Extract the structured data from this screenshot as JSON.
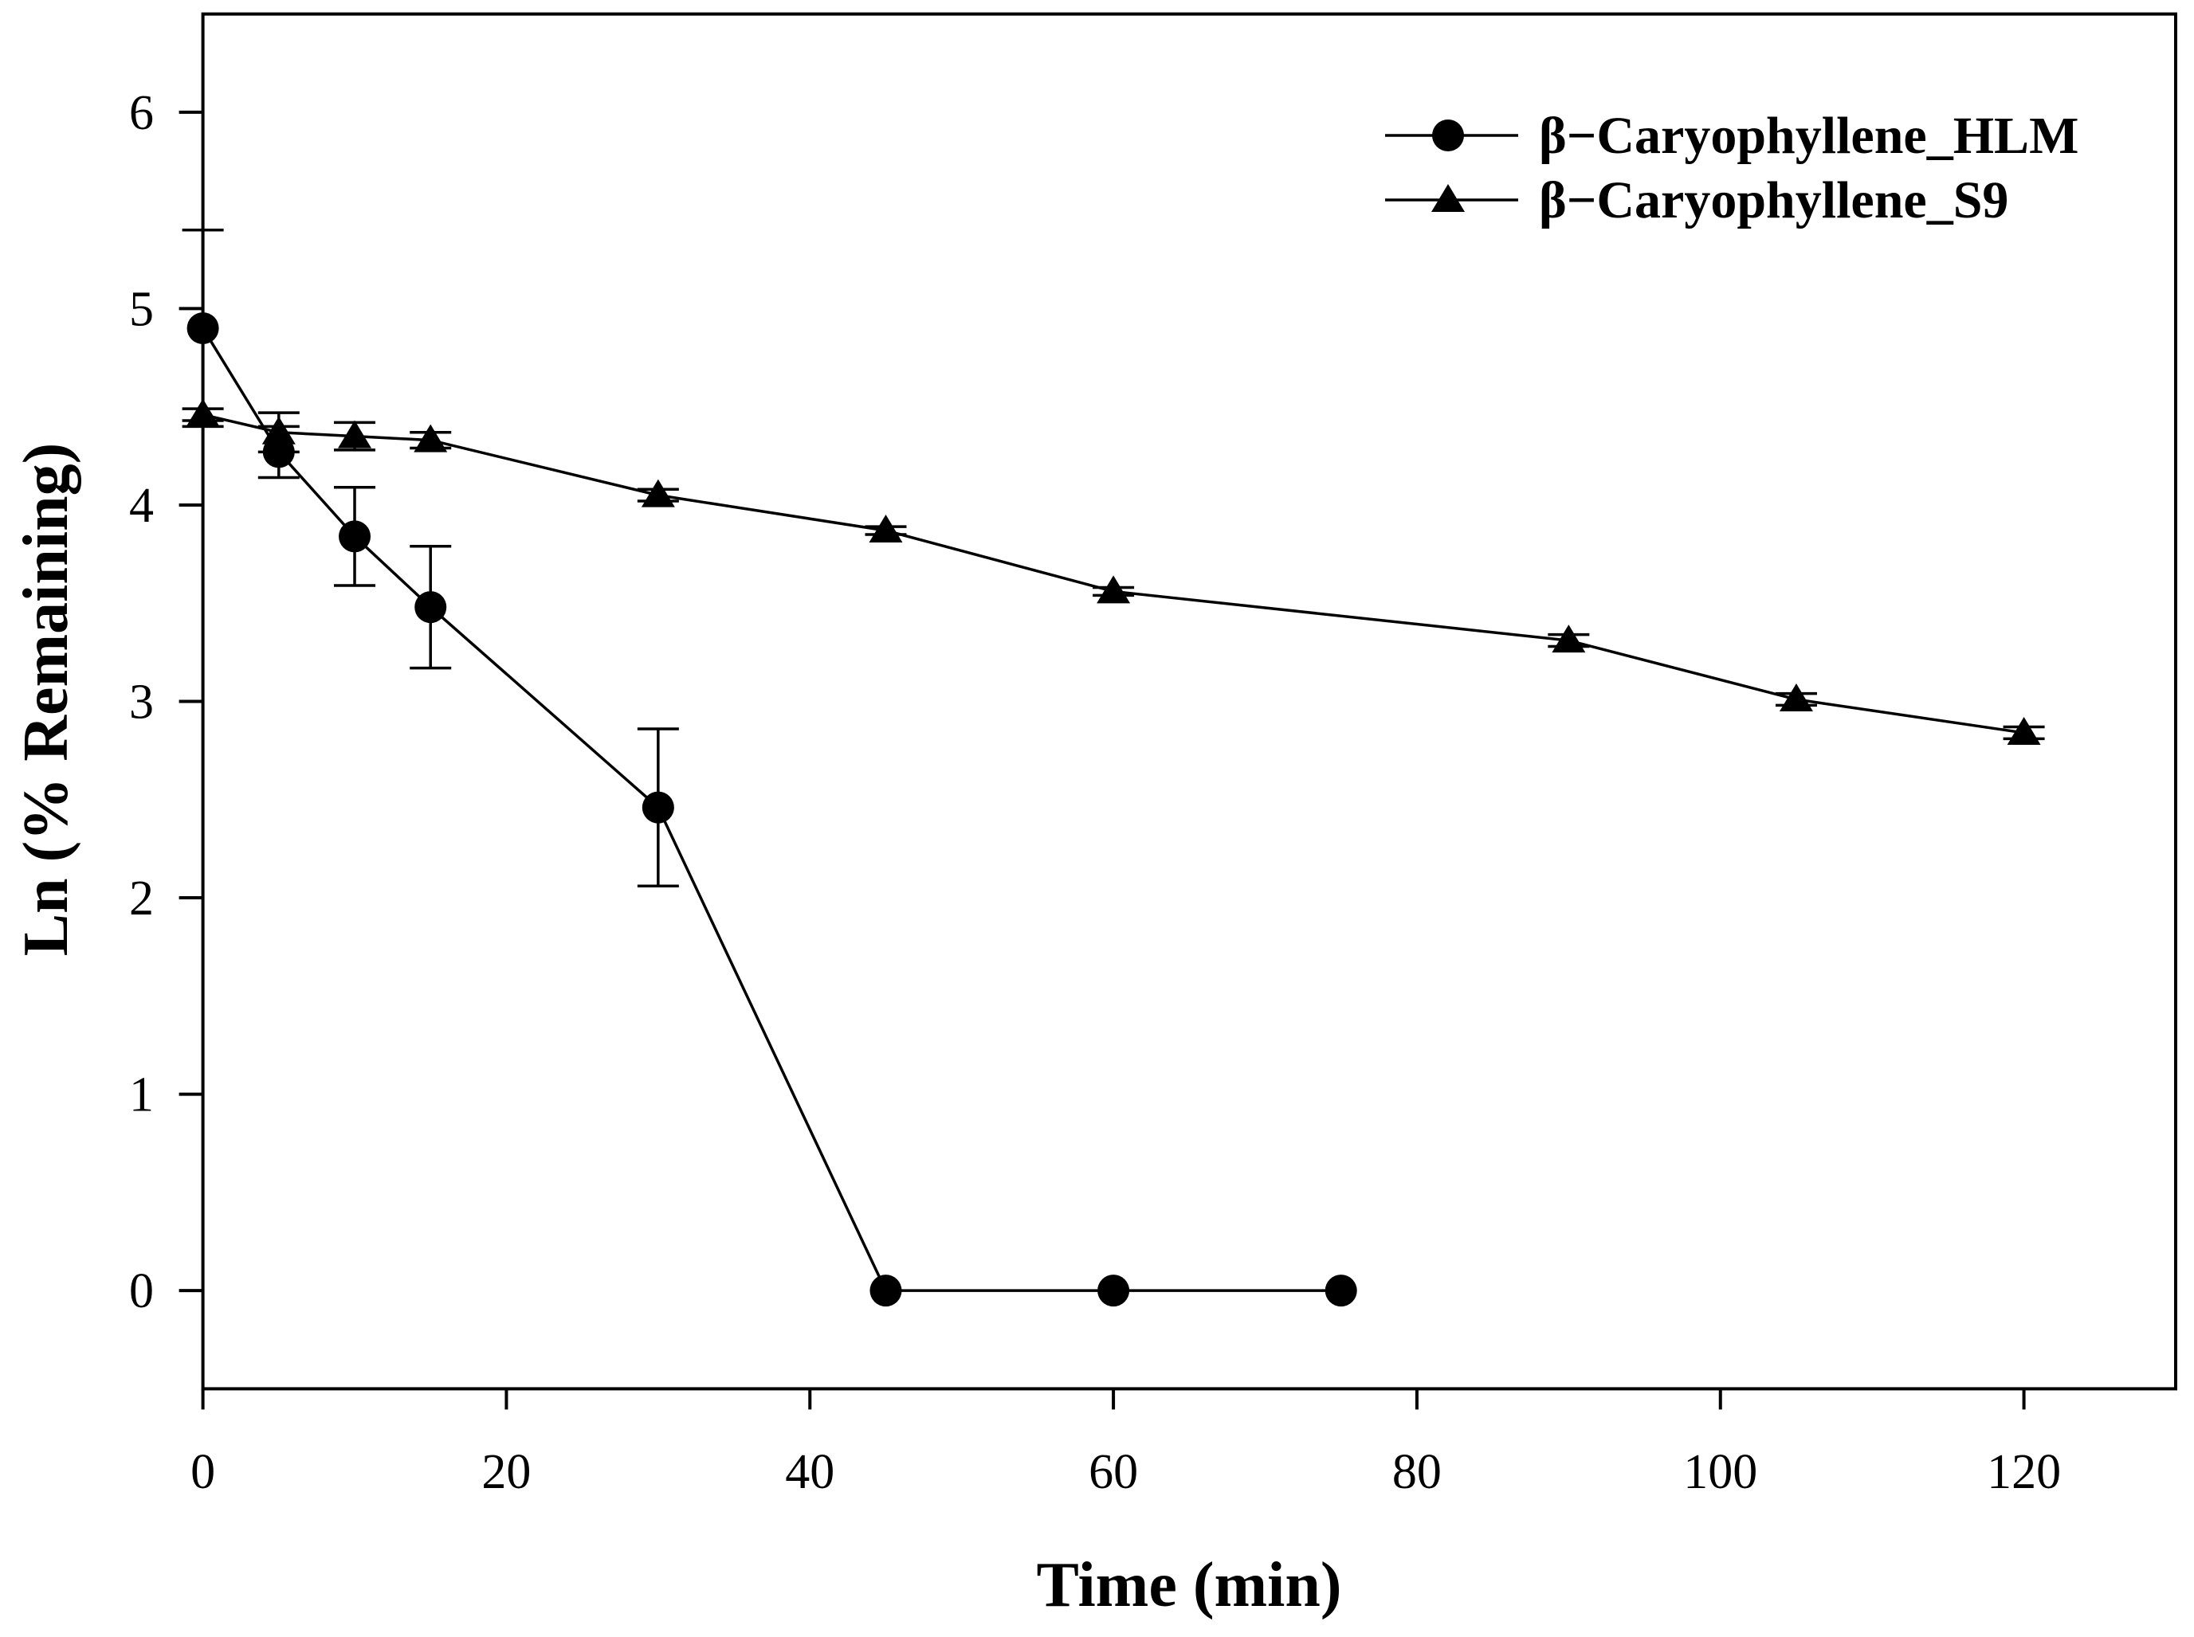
{
  "chart_data": {
    "type": "line",
    "xlabel": "Time (min)",
    "ylabel": "Ln (% Remaining)",
    "xlim": [
      0,
      130
    ],
    "ylim": [
      -0.5,
      6.5
    ],
    "x_ticks": [
      0,
      20,
      40,
      60,
      80,
      100,
      120
    ],
    "y_ticks": [
      0,
      1,
      2,
      3,
      4,
      5,
      6
    ],
    "grid": false,
    "legend_position": "top-right",
    "series": [
      {
        "name": "β−Caryophyllene_HLM",
        "marker_icon": "filled-circle-icon",
        "x": [
          0,
          5,
          10,
          15,
          30,
          45,
          60,
          75
        ],
        "y": [
          4.9,
          4.27,
          3.84,
          3.48,
          2.46,
          0,
          0,
          0
        ],
        "error": [
          0.5,
          0.13,
          0.25,
          0.31,
          0.4,
          0,
          0,
          0
        ]
      },
      {
        "name": "β−Caryophyllene_S9",
        "marker_icon": "filled-triangle-icon",
        "x": [
          0,
          5,
          10,
          15,
          30,
          45,
          60,
          90,
          105,
          120
        ],
        "y": [
          4.46,
          4.37,
          4.35,
          4.33,
          4.05,
          3.87,
          3.56,
          3.31,
          3.01,
          2.84
        ],
        "error": [
          0.03,
          0.1,
          0.07,
          0.04,
          0.03,
          0.02,
          0.02,
          0.03,
          0.03,
          0.03
        ]
      }
    ]
  },
  "colors": {
    "ink": "#000000",
    "background": "#ffffff"
  }
}
